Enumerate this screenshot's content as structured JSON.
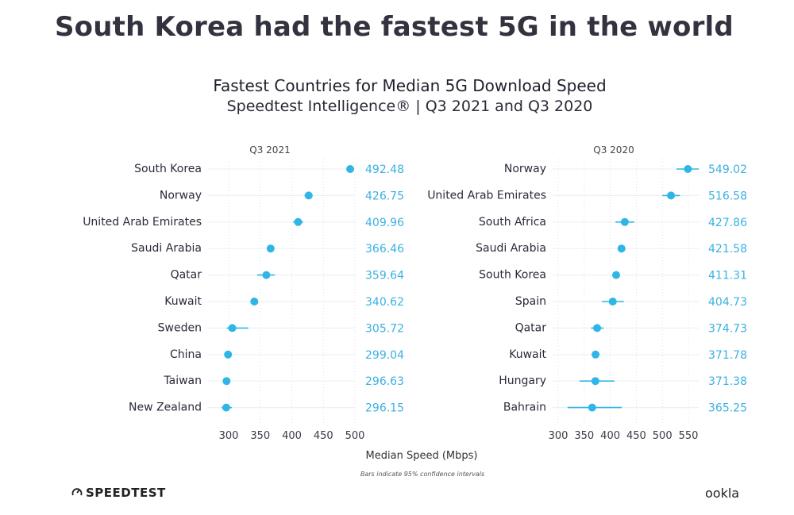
{
  "headline": "South Korea had the fastest 5G in the world",
  "footer": {
    "logo_text": "SPEEDTEST",
    "logo_icon": "gauge-icon",
    "footnote": "Bars indicate 95% confidence intervals",
    "brand": "ookla"
  },
  "colors": {
    "point": "#2fb6e6",
    "value_label": "#3ab0e2",
    "ci_line": "#2fb6e6",
    "row_line": "#eef0f3",
    "grid": "#d7d9de"
  },
  "chart_data": {
    "type": "scatter",
    "title": "Fastest Countries for Median 5G Download Speed",
    "subtitle": "Speedtest Intelligence® | Q3 2021 and Q3 2020",
    "xlabel": "Median Speed (Mbps)",
    "panels": [
      {
        "title": "Q3 2021",
        "xlim": [
          275,
          500
        ],
        "xticks": [
          300,
          350,
          400,
          450,
          500
        ],
        "categories": [
          "South Korea",
          "Norway",
          "United Arab Emirates",
          "Saudi Arabia",
          "Qatar",
          "Kuwait",
          "Sweden",
          "China",
          "Taiwan",
          "New Zealand"
        ],
        "values": [
          492.48,
          426.75,
          409.96,
          366.46,
          359.64,
          340.62,
          305.72,
          299.04,
          296.63,
          296.15
        ],
        "ci_low": [
          487,
          420,
          402,
          362,
          345,
          336,
          297,
          295,
          292,
          289
        ],
        "ci_high": [
          498,
          433,
          418,
          371,
          373,
          346,
          331,
          303,
          301,
          305
        ]
      },
      {
        "title": "Q3 2020",
        "xlim": [
          290,
          570
        ],
        "xticks": [
          300,
          350,
          400,
          450,
          500,
          550
        ],
        "categories": [
          "Norway",
          "United Arab Emirates",
          "South Africa",
          "Saudi Arabia",
          "South Korea",
          "Spain",
          "Qatar",
          "Kuwait",
          "Hungary",
          "Bahrain"
        ],
        "values": [
          549.02,
          516.58,
          427.86,
          421.58,
          411.31,
          404.73,
          374.73,
          371.78,
          371.38,
          365.25
        ],
        "ci_low": [
          527,
          500,
          410,
          417,
          406,
          384,
          363,
          366,
          341,
          318
        ],
        "ci_high": [
          570,
          534,
          446,
          426,
          417,
          426,
          387,
          377,
          408,
          422
        ]
      }
    ]
  }
}
